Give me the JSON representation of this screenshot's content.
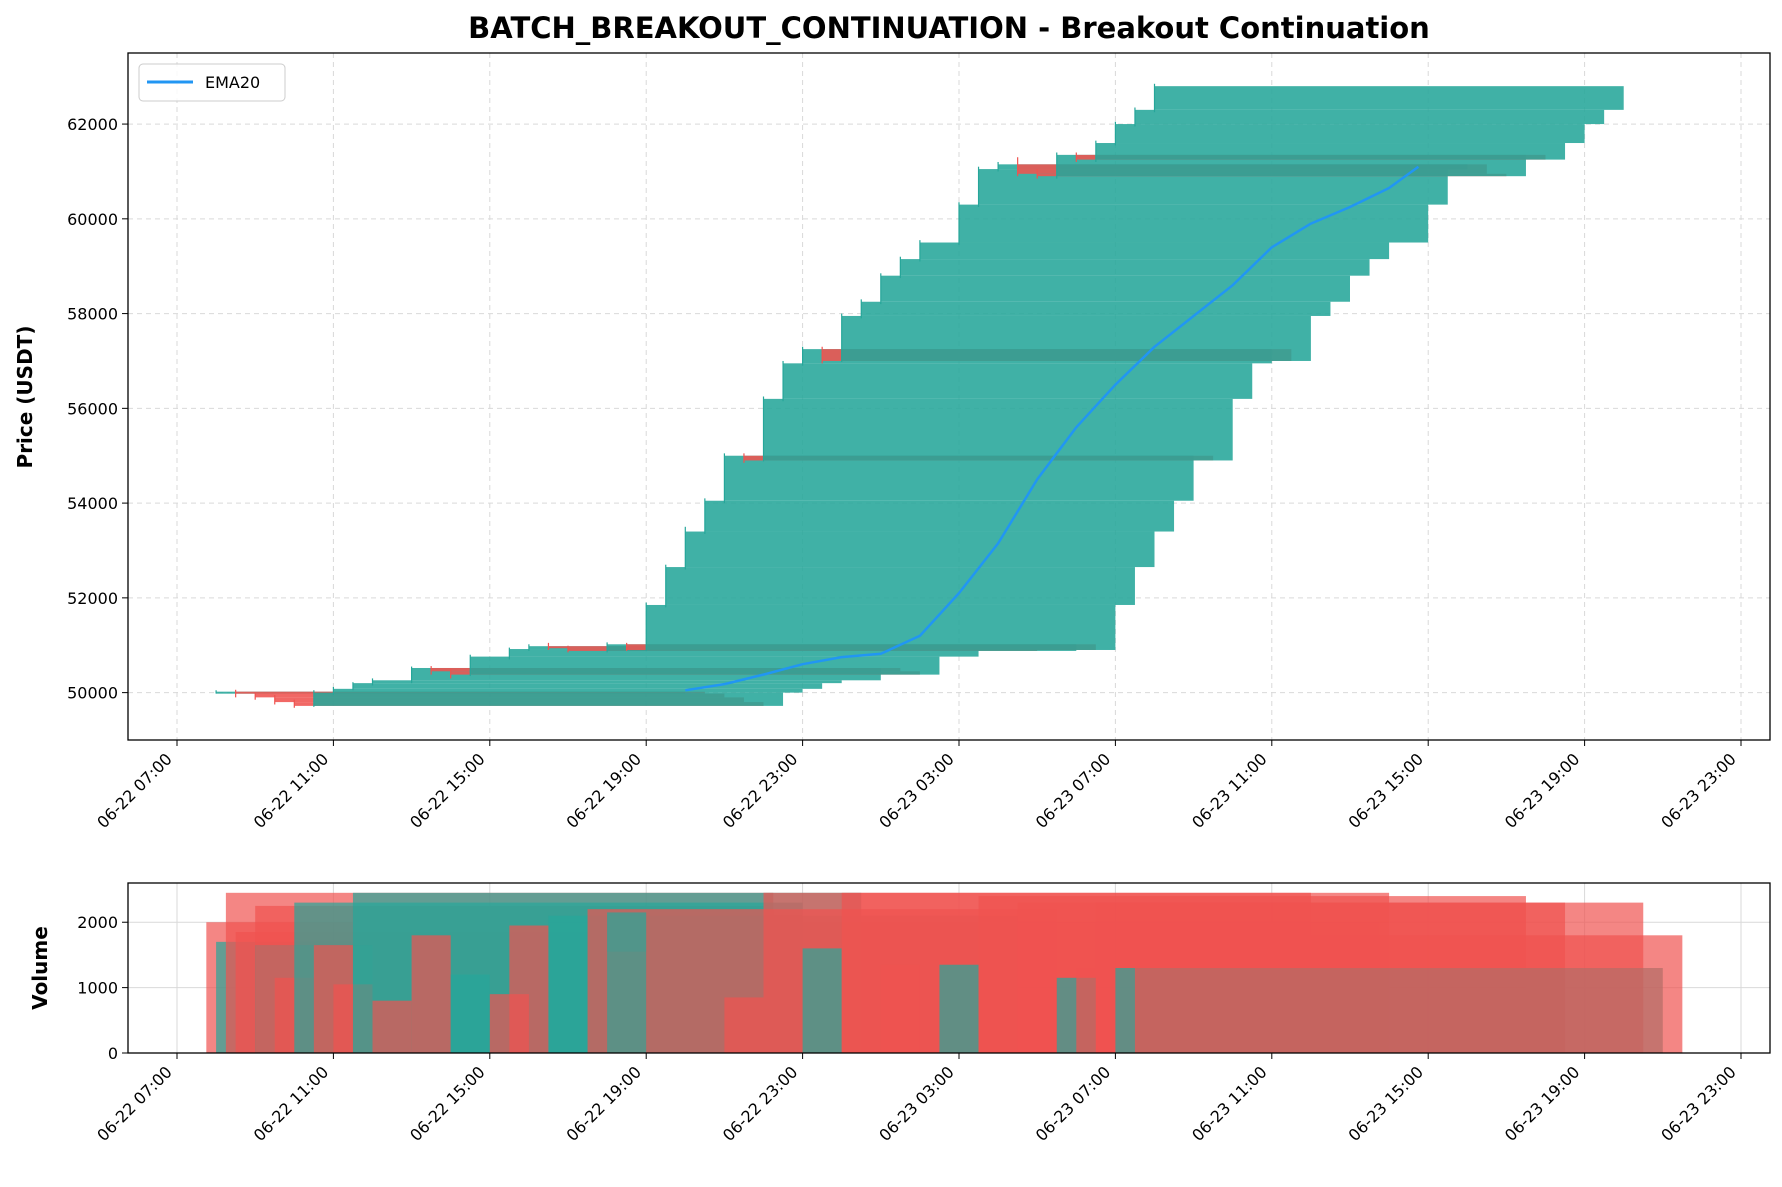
{
  "colors": {
    "up": "#26a69a",
    "down": "#ef5350",
    "ema": "#2196f3",
    "grid": "#d9d9d9"
  },
  "chart_data": {
    "type": "candlestick",
    "title": "BATCH_BREAKOUT_CONTINUATION - Breakout Continuation",
    "xlabel": "",
    "time_axis": {
      "start": "06-22 07:00",
      "ticks": [
        "06-22 07:00",
        "06-22 11:00",
        "06-22 15:00",
        "06-22 19:00",
        "06-22 23:00",
        "06-23 03:00",
        "06-23 07:00",
        "06-23 11:00",
        "06-23 15:00",
        "06-23 19:00",
        "06-23 23:00"
      ]
    },
    "price_panel": {
      "ylabel": "Price (USDT)",
      "ylim": [
        49000,
        63500
      ],
      "yticks": [
        50000,
        52000,
        54000,
        56000,
        58000,
        60000,
        62000
      ],
      "grid": true,
      "legend": {
        "placement": "top-left",
        "entries": [
          {
            "name": "EMA20",
            "color": "#2196f3"
          }
        ]
      },
      "candle_width_hours": 12,
      "candles": [
        {
          "t": "06-22 08:00",
          "o": 50000,
          "h": 50050,
          "c": 50020,
          "l": 49980
        },
        {
          "t": "06-22 08:30",
          "o": 50020,
          "h": 50060,
          "c": 49980,
          "l": 49900
        },
        {
          "t": "06-22 09:00",
          "o": 49980,
          "h": 50000,
          "c": 49900,
          "l": 49850
        },
        {
          "t": "06-22 09:30",
          "o": 49900,
          "h": 49950,
          "c": 49800,
          "l": 49750
        },
        {
          "t": "06-22 10:00",
          "o": 49800,
          "h": 49850,
          "c": 49720,
          "l": 49680
        },
        {
          "t": "06-22 10:30",
          "o": 49720,
          "h": 50050,
          "c": 50000,
          "l": 49700
        },
        {
          "t": "06-22 11:00",
          "o": 50000,
          "h": 50120,
          "c": 50080,
          "l": 49950
        },
        {
          "t": "06-22 11:30",
          "o": 50080,
          "h": 50220,
          "c": 50200,
          "l": 50050
        },
        {
          "t": "06-22 12:00",
          "o": 50200,
          "h": 50300,
          "c": 50260,
          "l": 50150
        },
        {
          "t": "06-22 13:00",
          "o": 50260,
          "h": 50550,
          "c": 50520,
          "l": 50200
        },
        {
          "t": "06-22 13:30",
          "o": 50520,
          "h": 50560,
          "c": 50450,
          "l": 50380
        },
        {
          "t": "06-22 14:00",
          "o": 50450,
          "h": 50500,
          "c": 50380,
          "l": 50300
        },
        {
          "t": "06-22 14:30",
          "o": 50380,
          "h": 50800,
          "c": 50760,
          "l": 50350
        },
        {
          "t": "06-22 15:30",
          "o": 50760,
          "h": 50950,
          "c": 50920,
          "l": 50700
        },
        {
          "t": "06-22 16:00",
          "o": 50920,
          "h": 51020,
          "c": 50980,
          "l": 50880
        },
        {
          "t": "06-22 16:30",
          "o": 50980,
          "h": 51050,
          "c": 50940,
          "l": 50900
        },
        {
          "t": "06-22 17:00",
          "o": 50940,
          "h": 50990,
          "c": 50880,
          "l": 50850
        },
        {
          "t": "06-22 18:00",
          "o": 50880,
          "h": 51060,
          "c": 51020,
          "l": 50850
        },
        {
          "t": "06-22 18:30",
          "o": 51020,
          "h": 51050,
          "c": 50900,
          "l": 50880
        },
        {
          "t": "06-22 19:00",
          "o": 50900,
          "h": 51900,
          "c": 51850,
          "l": 50880
        },
        {
          "t": "06-22 19:30",
          "o": 51850,
          "h": 52700,
          "c": 52650,
          "l": 51800
        },
        {
          "t": "06-22 20:00",
          "o": 52650,
          "h": 53500,
          "c": 53400,
          "l": 52600
        },
        {
          "t": "06-22 20:30",
          "o": 53400,
          "h": 54100,
          "c": 54050,
          "l": 53350
        },
        {
          "t": "06-22 21:00",
          "o": 54050,
          "h": 55050,
          "c": 55000,
          "l": 54000
        },
        {
          "t": "06-22 21:30",
          "o": 55000,
          "h": 55050,
          "c": 54900,
          "l": 54850
        },
        {
          "t": "06-22 22:00",
          "o": 54900,
          "h": 56250,
          "c": 56200,
          "l": 54880
        },
        {
          "t": "06-22 22:30",
          "o": 56200,
          "h": 57000,
          "c": 56950,
          "l": 56150
        },
        {
          "t": "06-22 23:00",
          "o": 56950,
          "h": 57300,
          "c": 57250,
          "l": 56900
        },
        {
          "t": "06-22 23:30",
          "o": 57250,
          "h": 57300,
          "c": 57000,
          "l": 56950
        },
        {
          "t": "06-23 00:00",
          "o": 57000,
          "h": 58000,
          "c": 57950,
          "l": 56980
        },
        {
          "t": "06-23 00:30",
          "o": 57950,
          "h": 58300,
          "c": 58250,
          "l": 57900
        },
        {
          "t": "06-23 01:00",
          "o": 58250,
          "h": 58850,
          "c": 58800,
          "l": 58200
        },
        {
          "t": "06-23 01:30",
          "o": 58800,
          "h": 59200,
          "c": 59150,
          "l": 58750
        },
        {
          "t": "06-23 02:00",
          "o": 59150,
          "h": 59550,
          "c": 59500,
          "l": 59100
        },
        {
          "t": "06-23 03:00",
          "o": 59500,
          "h": 60350,
          "c": 60300,
          "l": 59450
        },
        {
          "t": "06-23 03:30",
          "o": 60300,
          "h": 61100,
          "c": 61050,
          "l": 60250
        },
        {
          "t": "06-23 04:00",
          "o": 61050,
          "h": 61200,
          "c": 61150,
          "l": 61000
        },
        {
          "t": "06-23 04:30",
          "o": 61150,
          "h": 61300,
          "c": 60950,
          "l": 60900
        },
        {
          "t": "06-23 05:00",
          "o": 60950,
          "h": 61050,
          "c": 60900,
          "l": 60850
        },
        {
          "t": "06-23 05:30",
          "o": 60900,
          "h": 61400,
          "c": 61350,
          "l": 60850
        },
        {
          "t": "06-23 06:00",
          "o": 61350,
          "h": 61400,
          "c": 61250,
          "l": 61200
        },
        {
          "t": "06-23 06:30",
          "o": 61250,
          "h": 61650,
          "c": 61600,
          "l": 61200
        },
        {
          "t": "06-23 07:00",
          "o": 61600,
          "h": 62050,
          "c": 62000,
          "l": 61550
        },
        {
          "t": "06-23 07:30",
          "o": 62000,
          "h": 62350,
          "c": 62300,
          "l": 61950
        },
        {
          "t": "06-23 08:00",
          "o": 62300,
          "h": 62850,
          "c": 62800,
          "l": 62250
        }
      ],
      "ema20": [
        {
          "t": "06-22 20:00",
          "v": 50050
        },
        {
          "t": "06-22 21:00",
          "v": 50180
        },
        {
          "t": "06-22 22:00",
          "v": 50380
        },
        {
          "t": "06-22 23:00",
          "v": 50600
        },
        {
          "t": "06-23 00:00",
          "v": 50750
        },
        {
          "t": "06-23 01:00",
          "v": 50820
        },
        {
          "t": "06-23 02:00",
          "v": 51200
        },
        {
          "t": "06-23 03:00",
          "v": 52100
        },
        {
          "t": "06-23 04:00",
          "v": 53150
        },
        {
          "t": "06-23 05:00",
          "v": 54500
        },
        {
          "t": "06-23 06:00",
          "v": 55600
        },
        {
          "t": "06-23 07:00",
          "v": 56500
        },
        {
          "t": "06-23 08:00",
          "v": 57300
        },
        {
          "t": "06-23 09:00",
          "v": 57950
        },
        {
          "t": "06-23 10:00",
          "v": 58600
        },
        {
          "t": "06-23 11:00",
          "v": 59400
        },
        {
          "t": "06-23 12:00",
          "v": 59900
        },
        {
          "t": "06-23 13:00",
          "v": 60250
        },
        {
          "t": "06-23 14:00",
          "v": 60650
        },
        {
          "t": "06-23 14:45",
          "v": 61100
        }
      ]
    },
    "volume_panel": {
      "ylabel": "Volume",
      "ylim": [
        0,
        2600
      ],
      "yticks": [
        0,
        1000,
        2000
      ],
      "bars": [
        {
          "t": "06-22 07:45",
          "v": 2000,
          "hours": 30
        },
        {
          "t": "06-22 08:00",
          "v": 1700,
          "hours": 14
        },
        {
          "t": "06-22 08:15",
          "v": 2450,
          "hours": 14
        },
        {
          "t": "06-22 08:30",
          "v": 1850,
          "hours": 13
        },
        {
          "t": "06-22 09:00",
          "v": 1650,
          "hours": 3
        },
        {
          "t": "06-22 09:00",
          "v": 2250,
          "hours": 13
        },
        {
          "t": "06-22 09:30",
          "v": 1150,
          "hours": 1
        },
        {
          "t": "06-22 10:00",
          "v": 2300,
          "hours": 13
        },
        {
          "t": "06-22 10:30",
          "v": 1650,
          "hours": 1
        },
        {
          "t": "06-22 11:00",
          "v": 1050,
          "hours": 1
        },
        {
          "t": "06-22 11:30",
          "v": 2450,
          "hours": 13
        },
        {
          "t": "06-22 12:00",
          "v": 800,
          "hours": 1
        },
        {
          "t": "06-22 13:00",
          "v": 1800,
          "hours": 1
        },
        {
          "t": "06-22 14:00",
          "v": 1200,
          "hours": 1
        },
        {
          "t": "06-22 15:00",
          "v": 900,
          "hours": 1
        },
        {
          "t": "06-22 15:30",
          "v": 1950,
          "hours": 1
        },
        {
          "t": "06-22 16:30",
          "v": 2100,
          "hours": 12
        },
        {
          "t": "06-22 17:30",
          "v": 2200,
          "hours": 12
        },
        {
          "t": "06-22 18:00",
          "v": 1550,
          "hours": 1
        },
        {
          "t": "06-22 18:00",
          "v": 2150,
          "hours": 1
        },
        {
          "t": "06-22 21:00",
          "v": 850,
          "hours": 1
        },
        {
          "t": "06-22 22:00",
          "v": 2450,
          "hours": 14
        },
        {
          "t": "06-22 23:00",
          "v": 1600,
          "hours": 1
        },
        {
          "t": "06-23 00:00",
          "v": 2450,
          "hours": 14
        },
        {
          "t": "06-23 01:00",
          "v": 1350,
          "hours": 1
        },
        {
          "t": "06-23 02:30",
          "v": 1350,
          "hours": 1
        },
        {
          "t": "06-23 03:30",
          "v": 2400,
          "hours": 14
        },
        {
          "t": "06-23 04:30",
          "v": 2300,
          "hours": 14
        },
        {
          "t": "06-23 05:30",
          "v": 1150,
          "hours": 1
        },
        {
          "t": "06-23 06:00",
          "v": 1300,
          "hours": 1
        },
        {
          "t": "06-23 06:30",
          "v": 2300,
          "hours": 14
        },
        {
          "t": "06-23 07:00",
          "v": 1300,
          "hours": 14
        },
        {
          "t": "06-23 07:30",
          "v": 1800,
          "hours": 14
        }
      ]
    }
  }
}
